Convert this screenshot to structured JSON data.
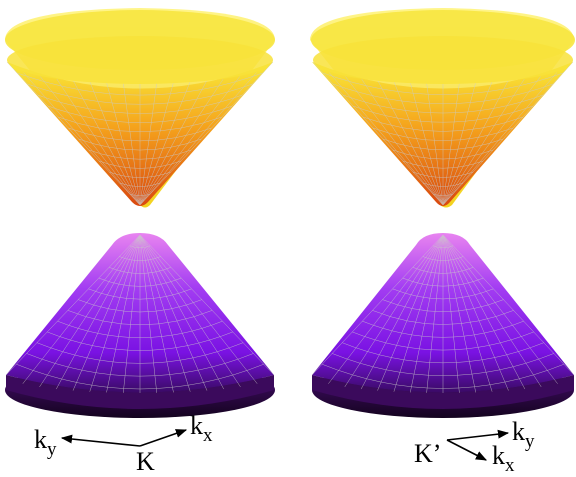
{
  "panels": [
    {
      "id": "left",
      "valley_label": "K",
      "axis_x_label": "k",
      "axis_x_sub": "x",
      "axis_y_label": "k",
      "axis_y_sub": "y"
    },
    {
      "id": "right",
      "valley_label": "K’",
      "axis_x_label": "k",
      "axis_x_sub": "x",
      "axis_y_label": "k",
      "axis_y_sub": "y"
    }
  ],
  "colors": {
    "upper_top": "#f9ec3a",
    "upper_mid": "#f5a31c",
    "upper_bottom": "#d9480f",
    "lower_top": "#e884f0",
    "lower_mid": "#9a22ef",
    "lower_bottom": "#220533",
    "mesh": "#c9c9c9"
  }
}
